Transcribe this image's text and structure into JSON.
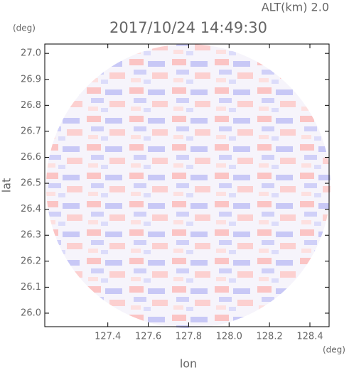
{
  "chart_data": {
    "type": "image",
    "title": "2017/10/24 14:49:30",
    "subtitle": "ALT(km) 2.0",
    "x_label": "lon",
    "y_label": "lat",
    "x_unit": "(deg)",
    "y_unit": "(deg)",
    "xlim": [
      127.088,
      128.495
    ],
    "ylim": [
      25.948,
      27.036
    ],
    "xticks": [
      127.4,
      127.6,
      127.8,
      {
        "value": 128.0,
        "label": "128.0"
      },
      128.2,
      128.4
    ],
    "yticks": [
      {
        "value": 26.0,
        "label": "26.0"
      },
      26.1,
      26.2,
      26.3,
      26.4,
      26.5,
      26.6,
      26.7,
      26.8,
      26.9,
      {
        "value": 27.0,
        "label": "27.0"
      }
    ]
  }
}
